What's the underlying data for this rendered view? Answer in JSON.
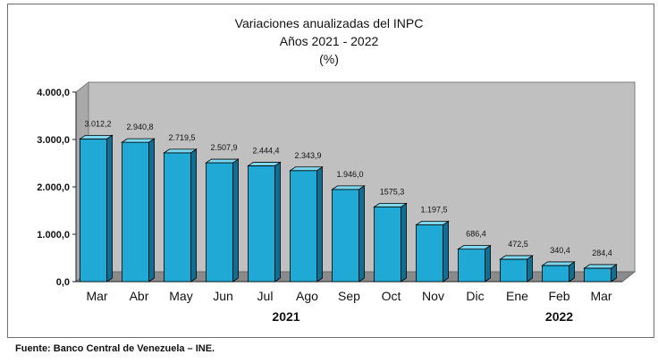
{
  "chart_data": {
    "type": "bar",
    "title": [
      "Variaciones anualizadas del INPC",
      "Años 2021 - 2022",
      "(%)"
    ],
    "categories": [
      "Mar",
      "Abr",
      "May",
      "Jun",
      "Jul",
      "Ago",
      "Sep",
      "Oct",
      "Nov",
      "Dic",
      "Ene",
      "Feb",
      "Mar"
    ],
    "year_groups": [
      {
        "label": "2021",
        "from": 0,
        "to": 9
      },
      {
        "label": "2022",
        "from": 10,
        "to": 12
      }
    ],
    "values": [
      3012.2,
      2940.8,
      2719.5,
      2507.9,
      2444.4,
      2343.9,
      1946.0,
      1575.3,
      1197.5,
      686.4,
      472.5,
      340.4,
      284.4
    ],
    "data_labels": [
      "3.012,2",
      "2.940,8",
      "2.719,5",
      "2.507,9",
      "2.444,4",
      "2.343,9",
      "1.946,0",
      "1575,3",
      "1.197,5",
      "686,4",
      "472,5",
      "340,4",
      "284,4"
    ],
    "yticks": [
      "0,0",
      "1.000,0",
      "2.000,0",
      "3.000,0",
      "4.000,0"
    ],
    "ylim": [
      0,
      4000
    ],
    "xlabel": "",
    "ylabel": "",
    "grid": false,
    "colors": {
      "bar": "#1fa9d4",
      "bar_top": "#7fd8f2",
      "bar_side": "#0f6f92",
      "wall": "#c0c0c0",
      "floor": "#8a8a8a"
    }
  },
  "source": "Fuente: Banco Central de Venezuela – INE."
}
